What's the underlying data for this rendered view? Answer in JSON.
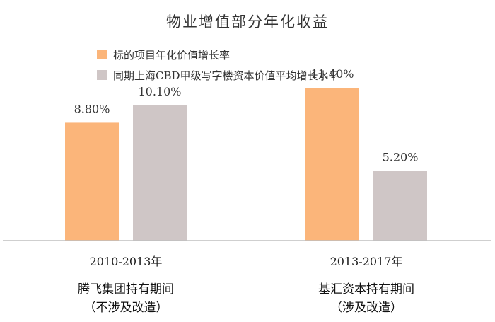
{
  "chart_data": {
    "type": "bar",
    "title": "物业增值部分年化收益",
    "categories": [
      "2010-2013年",
      "2013-2017年"
    ],
    "category_notes": [
      [
        "腾飞集团持有期间",
        "（不涉及改造）"
      ],
      [
        "基汇资本持有期间",
        "（涉及改造）"
      ]
    ],
    "series": [
      {
        "name": "标的项目年化价值增长率",
        "values": [
          8.8,
          11.4
        ],
        "labels": [
          "8.80%",
          "11.40%"
        ],
        "color": "#FBB57A"
      },
      {
        "name": "同期上海CBD甲级写字楼资本价值平均增长水平",
        "values": [
          10.1,
          5.2
        ],
        "labels": [
          "10.10%",
          "5.20%"
        ],
        "color": "#CFC6C6"
      }
    ],
    "ylim": [
      0,
      14
    ],
    "grid": false,
    "legend_position": "top-left"
  }
}
